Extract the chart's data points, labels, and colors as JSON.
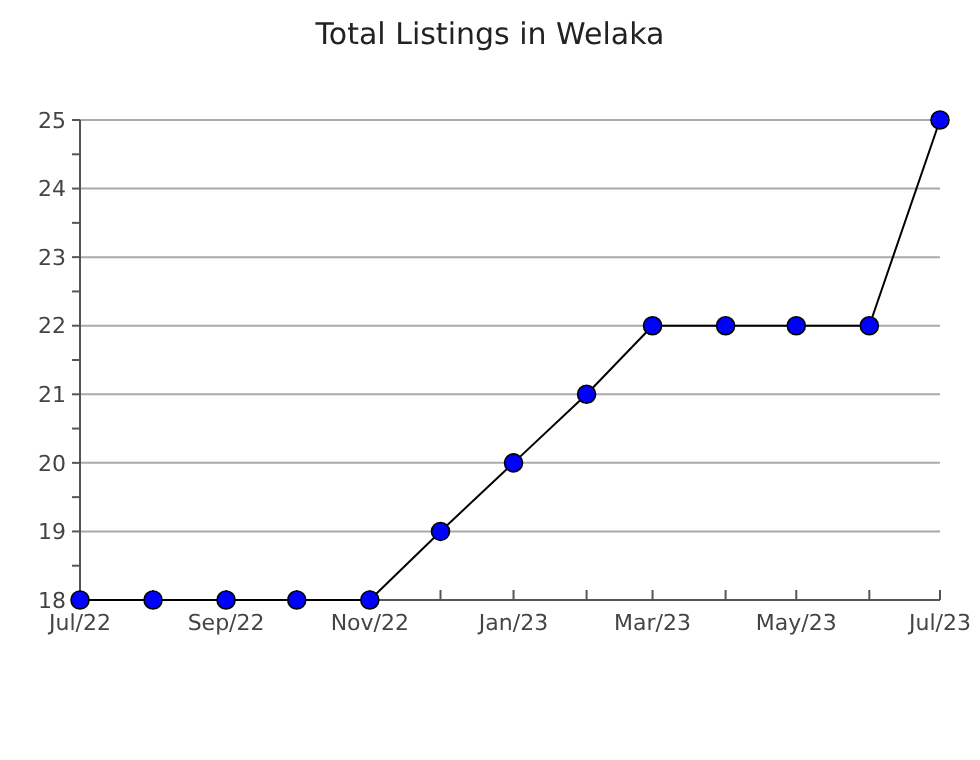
{
  "chart_data": {
    "type": "line",
    "title": "Total Listings in Welaka",
    "x": [
      "2022-07",
      "2022-08",
      "2022-09",
      "2022-10",
      "2022-11",
      "2022-12",
      "2023-01",
      "2023-02",
      "2023-03",
      "2023-04",
      "2023-05",
      "2023-06",
      "2023-07"
    ],
    "series": [
      {
        "color": "#0000ff",
        "values": [
          18,
          18,
          18,
          18,
          18,
          19,
          20,
          21,
          22,
          22,
          22,
          22,
          25
        ]
      }
    ],
    "xlim": [
      "2022-07",
      "2023-07"
    ],
    "xticks": [
      {
        "value": "2022-07",
        "label": "Jul/22"
      },
      {
        "value": "2022-08",
        "label": null
      },
      {
        "value": "2022-09",
        "label": "Sep/22"
      },
      {
        "value": "2022-10",
        "label": null
      },
      {
        "value": "2022-11",
        "label": "Nov/22"
      },
      {
        "value": "2022-12",
        "label": null
      },
      {
        "value": "2023-01",
        "label": "Jan/23"
      },
      {
        "value": "2023-02",
        "label": null
      },
      {
        "value": "2023-03",
        "label": "Mar/23"
      },
      {
        "value": "2023-04",
        "label": null
      },
      {
        "value": "2023-05",
        "label": "May/23"
      },
      {
        "value": "2023-06",
        "label": null
      },
      {
        "value": "2023-07",
        "label": "Jul/23"
      }
    ],
    "ylim": [
      18,
      25
    ],
    "yticks": [
      18,
      {
        "value": 18.5,
        "label": null
      },
      19,
      {
        "value": 19.5,
        "label": null
      },
      20,
      {
        "value": 20.5,
        "label": null
      },
      21,
      {
        "value": 21.5,
        "label": null
      },
      22,
      {
        "value": 22.5,
        "label": null
      },
      23,
      {
        "value": 23.5,
        "label": null
      },
      24,
      {
        "value": 24.5,
        "label": null
      },
      25
    ],
    "grid": "y",
    "marker": "circle",
    "line_style": "solid"
  }
}
